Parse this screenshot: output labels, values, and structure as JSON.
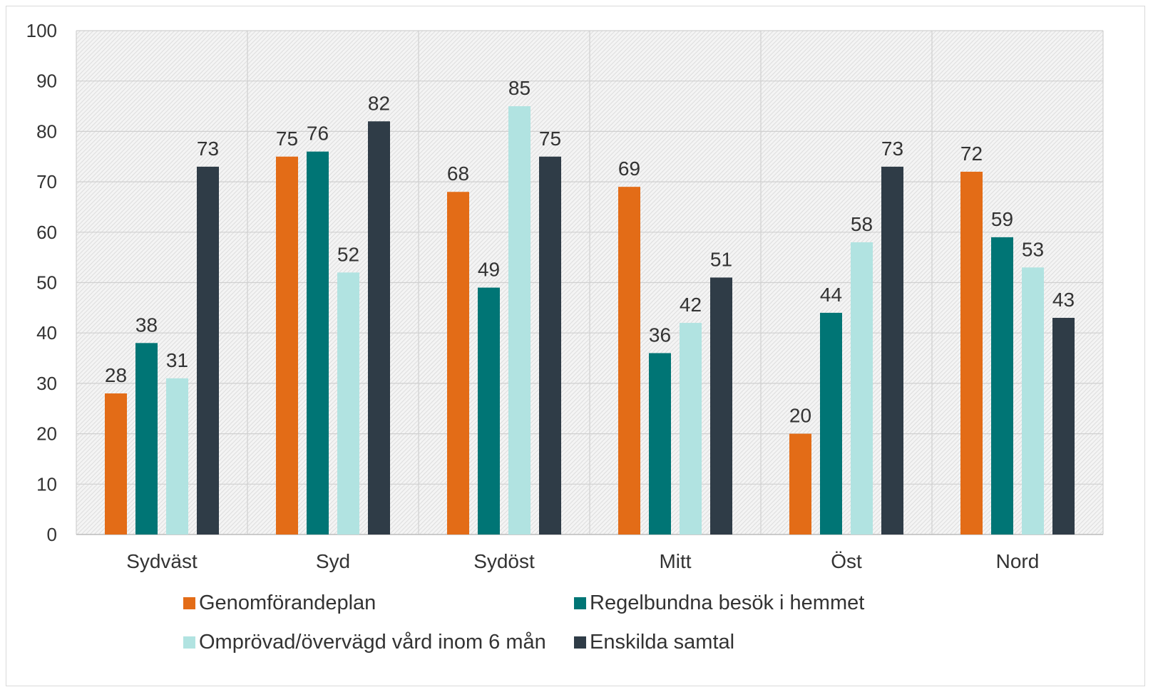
{
  "chart_data": {
    "type": "bar",
    "title": "",
    "xlabel": "",
    "ylabel": "",
    "ylim": [
      0,
      100
    ],
    "ytick_step": 10,
    "yticks": [
      "0",
      "10",
      "20",
      "30",
      "40",
      "50",
      "60",
      "70",
      "80",
      "90",
      "100"
    ],
    "grid": true,
    "legend_position": "bottom",
    "categories": [
      "Sydväst",
      "Syd",
      "Sydöst",
      "Mitt",
      "Öst",
      "Nord"
    ],
    "series": [
      {
        "name": "Genomförandeplan",
        "color": "#e36c17",
        "values": [
          28,
          75,
          68,
          69,
          20,
          72
        ]
      },
      {
        "name": "Regelbundna besök i hemmet",
        "color": "#007575",
        "values": [
          38,
          76,
          49,
          36,
          44,
          59
        ]
      },
      {
        "name": "Omprövad/övervägd vård inom 6 mån",
        "color": "#b1e3e1",
        "values": [
          31,
          52,
          85,
          42,
          58,
          53
        ]
      },
      {
        "name": "Enskilda samtal",
        "color": "#2f3c47",
        "values": [
          73,
          82,
          75,
          51,
          73,
          43
        ]
      }
    ]
  }
}
